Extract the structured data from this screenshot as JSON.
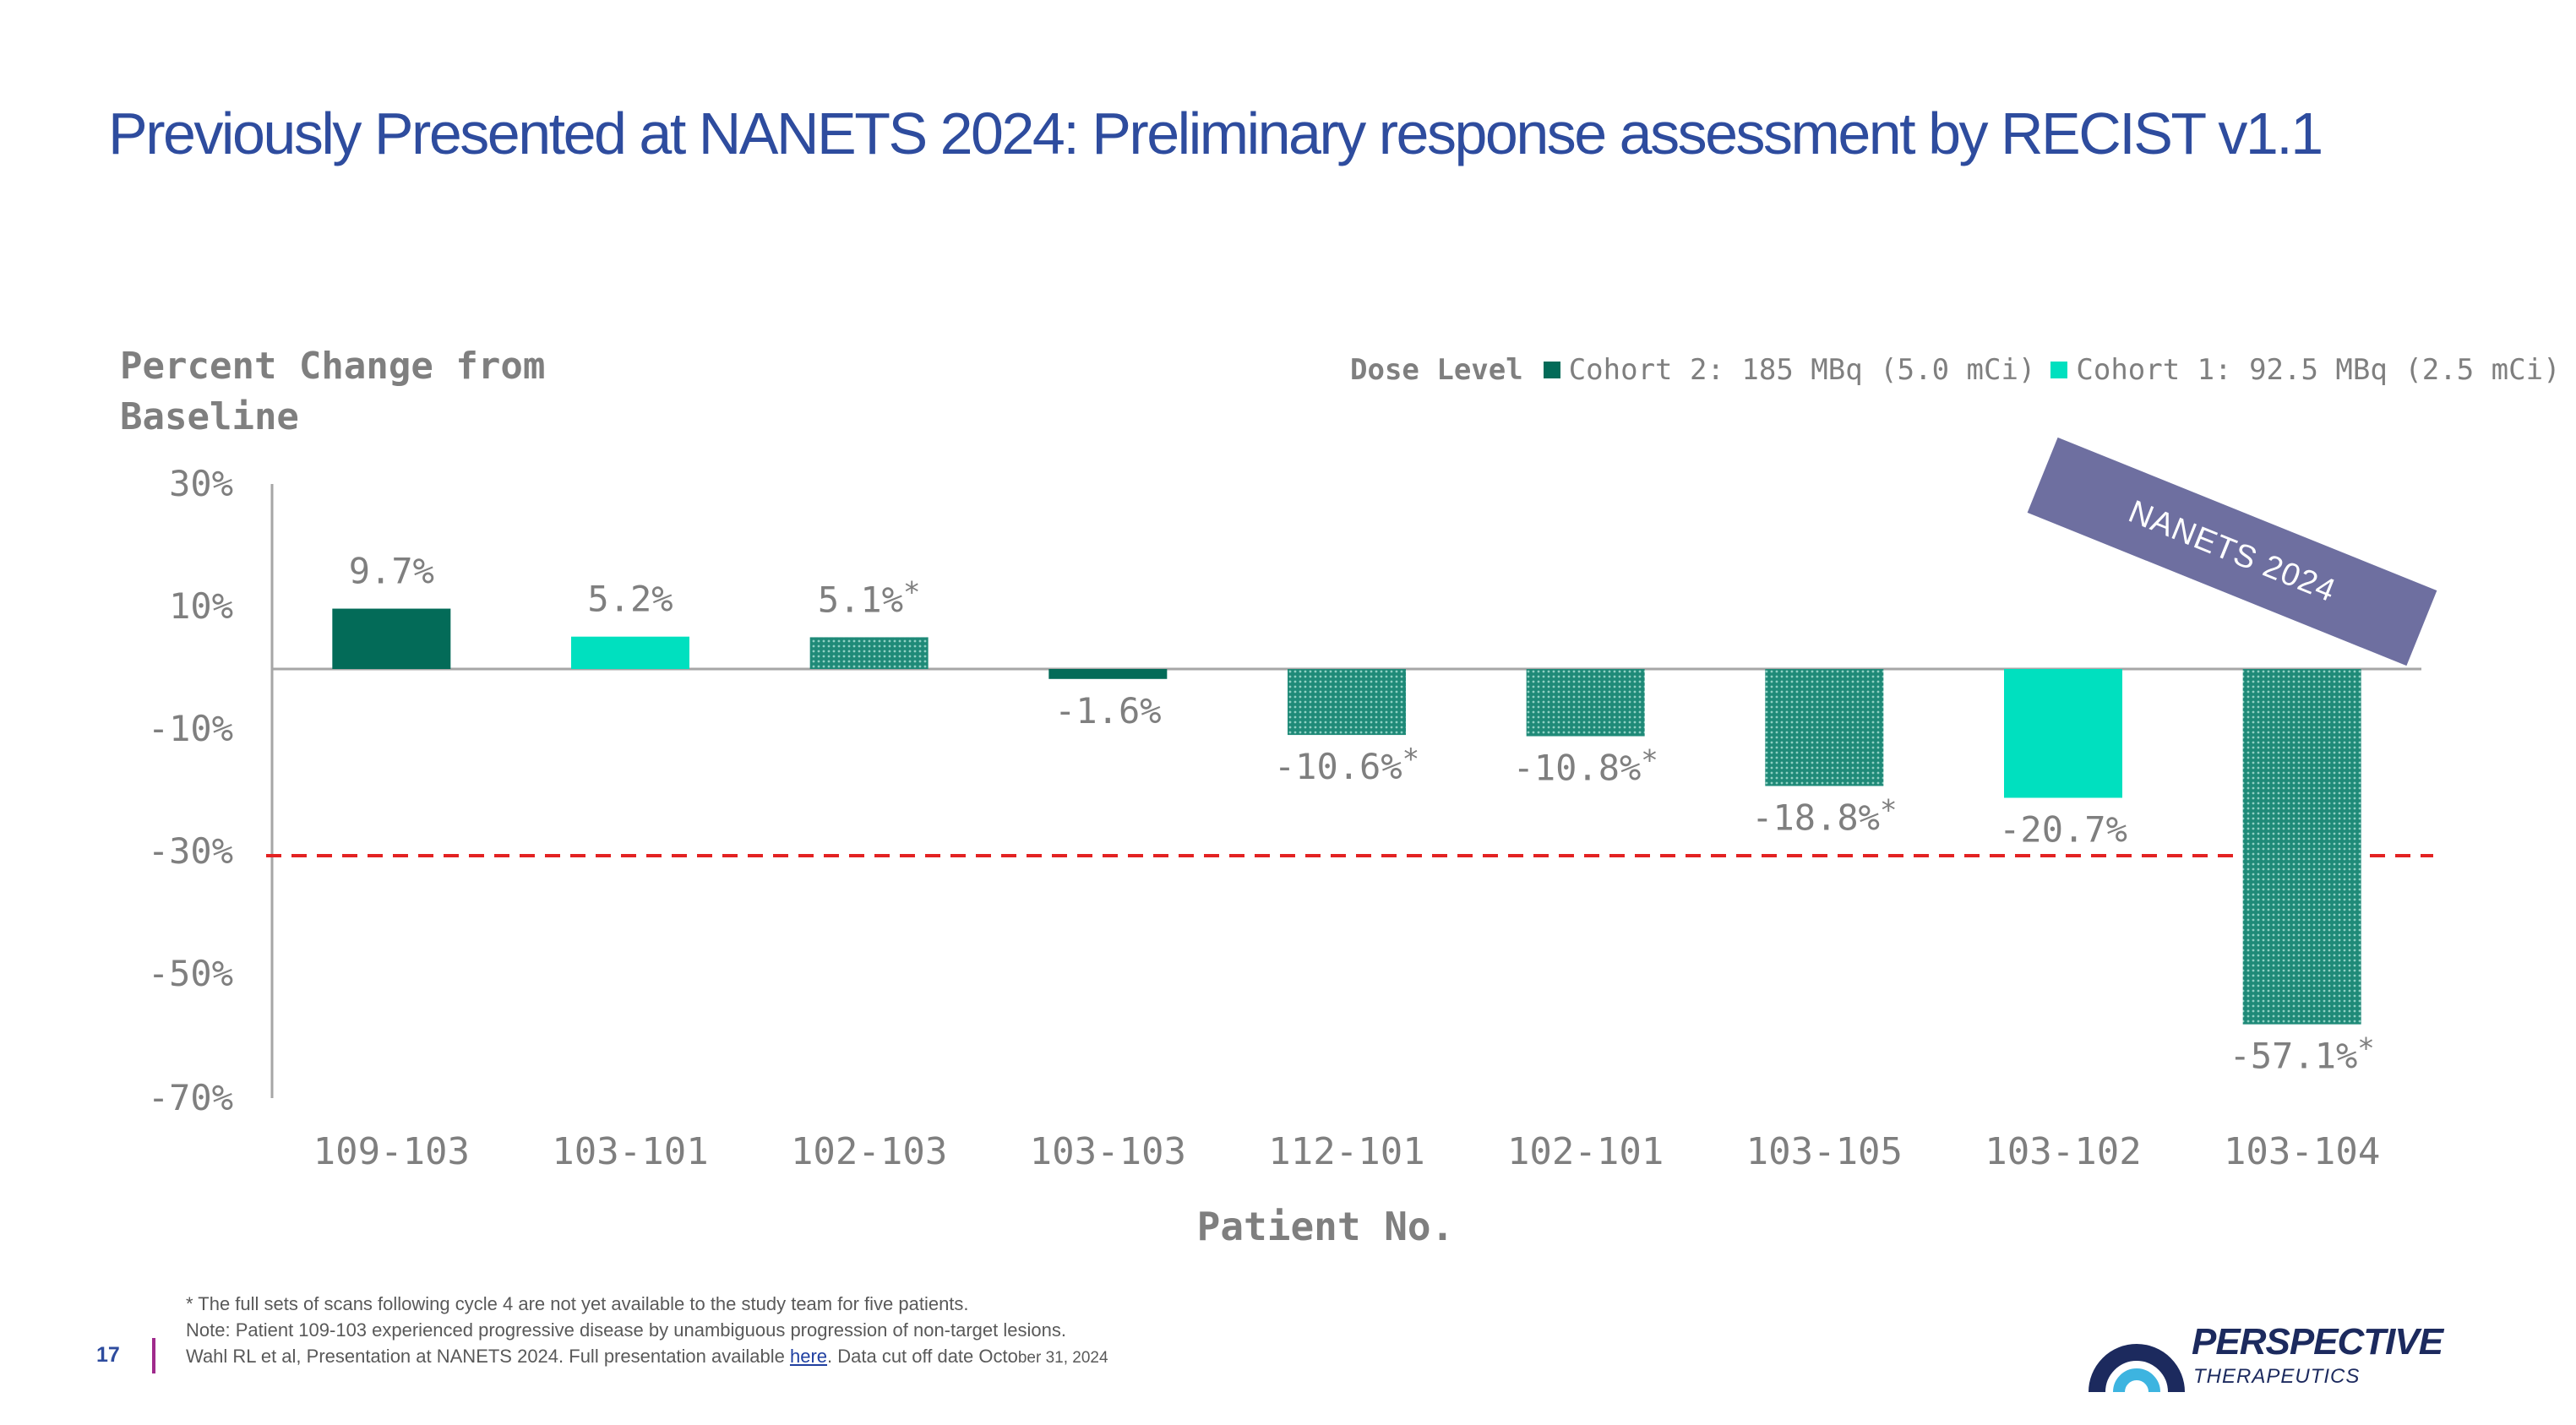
{
  "slide": {
    "title": "Previously Presented at NANETS 2024: Preliminary response assessment by RECIST v1.1",
    "page_number": "17",
    "banner": "NANETS 2024"
  },
  "footnotes": {
    "line1": "* The full sets of scans following cycle 4 are not yet available to the study team for five patients.",
    "line2": "Note: Patient 109-103 experienced progressive disease by unambiguous progression of non-target lesions.",
    "line3_pre": "Wahl RL et al, Presentation at NANETS 2024. Full presentation available ",
    "line3_link": "here",
    "line3_post": ". Data cut off date Octo",
    "line3_small": "ber 31, 2024"
  },
  "logo": {
    "name": "PERSPECTIVE",
    "sub": "THERAPEUTICS"
  },
  "chart_data": {
    "type": "bar",
    "ylabel": "Percent Change from Baseline",
    "xlabel": "Patient No.",
    "ylim": [
      -70,
      30
    ],
    "yticks": [
      "30%",
      "10%",
      "-10%",
      "-30%",
      "-50%",
      "-70%"
    ],
    "ytick_values": [
      30,
      10,
      -10,
      -30,
      -50,
      -70
    ],
    "threshold": -30,
    "threshold_color": "#e32222",
    "legend": {
      "title": "Dose Level",
      "items": [
        {
          "label": "Cohort 2: 185 MBq (5.0 mCi)",
          "color": "#036b58"
        },
        {
          "label": "Cohort 1: 92.5 MBq (2.5  mCi)",
          "color": "#00e0bf"
        }
      ]
    },
    "categories": [
      "109-103",
      "103-101",
      "102-103",
      "103-103",
      "112-101",
      "102-101",
      "103-105",
      "103-102",
      "103-104"
    ],
    "values": [
      9.7,
      5.2,
      5.1,
      -1.6,
      -10.6,
      -10.8,
      -18.8,
      -20.7,
      -57.1
    ],
    "data_labels": [
      "9.7%",
      "5.2%",
      "5.1%",
      "-1.6%",
      "-10.6%",
      "-10.8%",
      "-18.8%",
      "-20.7%",
      "-57.1%"
    ],
    "asterisk": [
      false,
      false,
      true,
      false,
      true,
      true,
      true,
      false,
      true
    ],
    "cohort": [
      2,
      1,
      2,
      2,
      2,
      2,
      2,
      1,
      2
    ],
    "pattern": [
      "solid",
      "solid",
      "dotted",
      "solid",
      "dotted",
      "dotted",
      "dotted",
      "solid",
      "dotted"
    ]
  }
}
